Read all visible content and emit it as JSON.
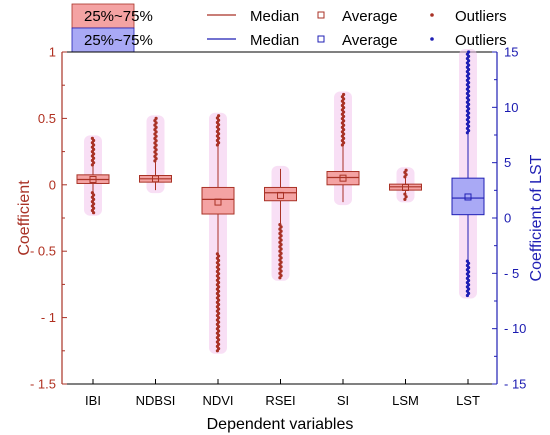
{
  "chart_data": {
    "type": "box",
    "xlabel": "Dependent variables",
    "ylabel": "Coefficient",
    "y2label": "Coefficient of LST",
    "ylim": [
      -1.5,
      1
    ],
    "y2lim": [
      -15,
      15
    ],
    "yticks": [
      "1",
      "0.5",
      "0",
      "- 0.5",
      "- 1",
      "- 1.5"
    ],
    "y2ticks": [
      "15",
      "10",
      "5",
      "0",
      "- 5",
      "- 10",
      "- 15"
    ],
    "categories": [
      "IBI",
      "NDBSI",
      "NDVI",
      "RSEI",
      "SI",
      "LSM",
      "LST"
    ],
    "legend": {
      "rows": [
        {
          "box": "25%~75%",
          "median": "Median",
          "average": "Average",
          "outliers": "Outliers"
        },
        {
          "box": "25%~75%",
          "median": "Median",
          "average": "Average",
          "outliers": "Outliers"
        }
      ]
    },
    "colors": {
      "red_series": "#a93226",
      "red_box": "#f4a3a3",
      "blue_series": "#1f1fb4",
      "blue_box": "#a9a9f5",
      "pink_halo": "#f2c4ec"
    },
    "series": [
      {
        "category": "IBI",
        "axis": "left",
        "q1": 0.01,
        "median": 0.04,
        "q3": 0.075,
        "mean": 0.04,
        "whisker_low": -0.06,
        "whisker_high": 0.15,
        "outlier_min": -0.21,
        "outlier_max": 0.35
      },
      {
        "category": "NDBSI",
        "axis": "left",
        "q1": 0.02,
        "median": 0.045,
        "q3": 0.07,
        "mean": 0.045,
        "whisker_low": -0.04,
        "whisker_high": 0.18,
        "outlier_min": -0.04,
        "outlier_max": 0.5
      },
      {
        "category": "NDVI",
        "axis": "left",
        "q1": -0.22,
        "median": -0.11,
        "q3": -0.02,
        "mean": -0.13,
        "whisker_low": -0.52,
        "whisker_high": 0.3,
        "outlier_min": -1.25,
        "outlier_max": 0.52
      },
      {
        "category": "RSEI",
        "axis": "left",
        "q1": -0.12,
        "median": -0.06,
        "q3": -0.02,
        "mean": -0.08,
        "whisker_low": -0.3,
        "whisker_high": 0.12,
        "outlier_min": -0.7,
        "outlier_max": 0.12
      },
      {
        "category": "SI",
        "axis": "left",
        "q1": 0.0,
        "median": 0.055,
        "q3": 0.1,
        "mean": 0.05,
        "whisker_low": -0.13,
        "whisker_high": 0.3,
        "outlier_min": -0.13,
        "outlier_max": 0.68
      },
      {
        "category": "LSM",
        "axis": "left",
        "q1": -0.04,
        "median": -0.015,
        "q3": 0.005,
        "mean": -0.02,
        "whisker_low": -0.07,
        "whisker_high": 0.06,
        "outlier_min": -0.11,
        "outlier_max": 0.11
      },
      {
        "category": "LST",
        "axis": "right",
        "q1": 0.3,
        "median": 1.8,
        "q3": 3.6,
        "mean": 1.9,
        "whisker_low": -3.9,
        "whisker_high": 7.7,
        "outlier_min": -7.0,
        "outlier_max": 15.0
      }
    ]
  }
}
